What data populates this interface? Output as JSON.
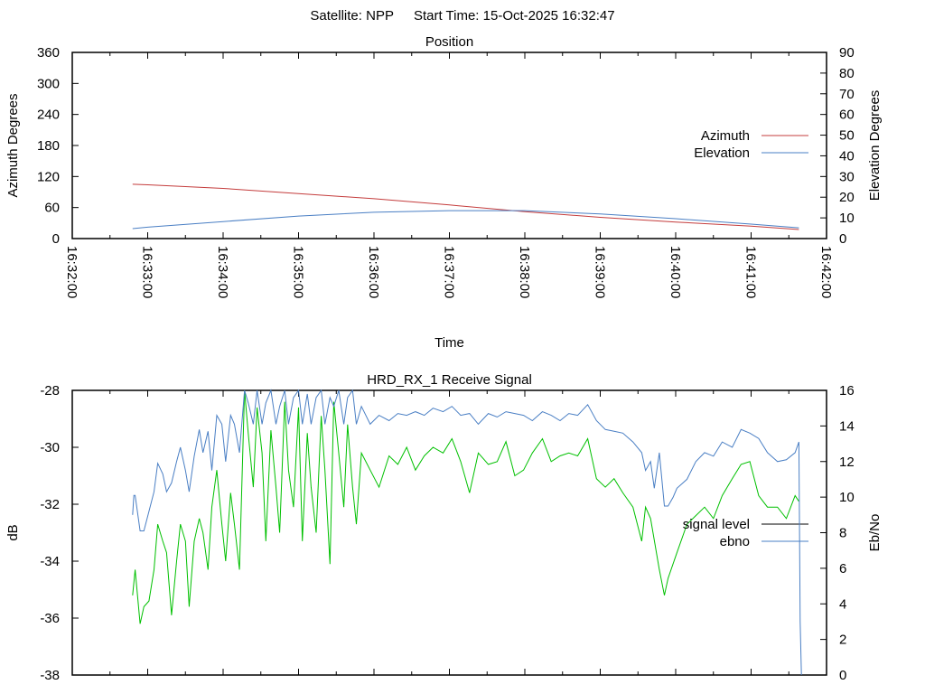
{
  "header": {
    "satellite_label": "Satellite: NPP",
    "start_time_label": "Start Time: 15-Oct-2025 16:32:47"
  },
  "chart_data": [
    {
      "type": "line",
      "title": "Position",
      "xlabel": "Time",
      "ylabel": "Azimuth Degrees",
      "y2label": "Elevation Degrees",
      "x_unit_note": "seconds",
      "xlim": [
        0,
        600
      ],
      "x_ticks": [
        0,
        60,
        120,
        180,
        240,
        300,
        360,
        420,
        480,
        540,
        600
      ],
      "x_tick_labels": [
        "16:32:00",
        "16:33:00",
        "16:34:00",
        "16:35:00",
        "16:36:00",
        "16:37:00",
        "16:38:00",
        "16:39:00",
        "16:40:00",
        "16:41:00",
        "16:42:00"
      ],
      "ylim": [
        0,
        360
      ],
      "y_ticks": [
        0,
        60,
        120,
        180,
        240,
        300,
        360
      ],
      "y2lim": [
        0,
        90
      ],
      "y2_ticks": [
        0,
        10,
        20,
        30,
        40,
        50,
        60,
        70,
        80,
        90
      ],
      "grid": false,
      "legend_position": "right",
      "series": [
        {
          "name": "Azimuth",
          "axis": "y",
          "color": "#c43c3c",
          "points": [
            [
              48,
              105
            ],
            [
              60,
              104
            ],
            [
              120,
              97
            ],
            [
              180,
              87
            ],
            [
              240,
              77
            ],
            [
              300,
              65
            ],
            [
              360,
              52
            ],
            [
              420,
              41
            ],
            [
              480,
              32
            ],
            [
              540,
              24
            ],
            [
              578,
              17.5
            ]
          ]
        },
        {
          "name": "Elevation",
          "axis": "y2",
          "color": "#4a7fc4",
          "points": [
            [
              48,
              4.8
            ],
            [
              60,
              5.5
            ],
            [
              120,
              8.2
            ],
            [
              180,
              10.9
            ],
            [
              240,
              12.7
            ],
            [
              300,
              13.5
            ],
            [
              360,
              13.5
            ],
            [
              420,
              11.9
            ],
            [
              480,
              9.6
            ],
            [
              540,
              7.0
            ],
            [
              578,
              5.2
            ]
          ]
        }
      ]
    },
    {
      "type": "line",
      "title": "HRD_RX_1 Receive Signal",
      "xlabel": "",
      "ylabel": "dB",
      "y2label": "Eb/No",
      "xlim": [
        0,
        600
      ],
      "x_ticks": [
        0,
        60,
        120,
        180,
        240,
        300,
        360,
        420,
        480,
        540,
        600
      ],
      "ylim": [
        -38,
        -28
      ],
      "y_ticks": [
        -38,
        -36,
        -34,
        -32,
        -30,
        -28
      ],
      "y2lim": [
        0,
        16
      ],
      "y2_ticks": [
        0,
        2,
        4,
        6,
        8,
        10,
        12,
        14,
        16
      ],
      "grid": false,
      "legend_position": "right",
      "series": [
        {
          "name": "signal level",
          "axis": "y",
          "color": "#00c000",
          "legend_color": "#000000",
          "points": [
            [
              48,
              -35.2
            ],
            [
              50,
              -34.3
            ],
            [
              54,
              -36.2
            ],
            [
              57,
              -35.6
            ],
            [
              61,
              -35.4
            ],
            [
              65,
              -34.3
            ],
            [
              68,
              -32.7
            ],
            [
              72,
              -33.3
            ],
            [
              75,
              -33.7
            ],
            [
              79,
              -35.9
            ],
            [
              83,
              -34.0
            ],
            [
              86,
              -32.7
            ],
            [
              90,
              -33.3
            ],
            [
              93,
              -35.6
            ],
            [
              97,
              -33.3
            ],
            [
              101,
              -32.5
            ],
            [
              104,
              -33.0
            ],
            [
              108,
              -34.3
            ],
            [
              111,
              -32.1
            ],
            [
              115,
              -30.8
            ],
            [
              119,
              -32.7
            ],
            [
              122,
              -34.0
            ],
            [
              126,
              -31.6
            ],
            [
              129,
              -32.7
            ],
            [
              133,
              -34.3
            ],
            [
              137,
              -28.0
            ],
            [
              140,
              -29.5
            ],
            [
              144,
              -31.4
            ],
            [
              147,
              -28.6
            ],
            [
              151,
              -30.2
            ],
            [
              154,
              -33.3
            ],
            [
              158,
              -29.4
            ],
            [
              162,
              -31.4
            ],
            [
              165,
              -33.0
            ],
            [
              169,
              -28.4
            ],
            [
              172,
              -30.8
            ],
            [
              176,
              -32.1
            ],
            [
              180,
              -28.6
            ],
            [
              183,
              -33.3
            ],
            [
              187,
              -29.5
            ],
            [
              190,
              -31.4
            ],
            [
              194,
              -33.0
            ],
            [
              198,
              -28.9
            ],
            [
              201,
              -30.8
            ],
            [
              205,
              -34.1
            ],
            [
              208,
              -28.4
            ],
            [
              212,
              -30.2
            ],
            [
              216,
              -32.1
            ],
            [
              219,
              -29.2
            ],
            [
              223,
              -31.4
            ],
            [
              226,
              -32.7
            ],
            [
              230,
              -30.2
            ],
            [
              237,
              -30.8
            ],
            [
              244,
              -31.4
            ],
            [
              252,
              -30.3
            ],
            [
              259,
              -30.6
            ],
            [
              266,
              -30.0
            ],
            [
              273,
              -30.8
            ],
            [
              280,
              -30.3
            ],
            [
              287,
              -30.0
            ],
            [
              295,
              -30.2
            ],
            [
              302,
              -29.7
            ],
            [
              309,
              -30.5
            ],
            [
              316,
              -31.6
            ],
            [
              323,
              -30.2
            ],
            [
              331,
              -30.6
            ],
            [
              338,
              -30.5
            ],
            [
              345,
              -29.8
            ],
            [
              352,
              -31.0
            ],
            [
              359,
              -30.8
            ],
            [
              366,
              -30.2
            ],
            [
              374,
              -29.7
            ],
            [
              381,
              -30.5
            ],
            [
              388,
              -30.3
            ],
            [
              395,
              -30.2
            ],
            [
              402,
              -30.3
            ],
            [
              410,
              -29.7
            ],
            [
              417,
              -31.1
            ],
            [
              424,
              -31.4
            ],
            [
              431,
              -31.1
            ],
            [
              438,
              -31.6
            ],
            [
              446,
              -32.1
            ],
            [
              453,
              -33.3
            ],
            [
              456,
              -32.1
            ],
            [
              460,
              -32.5
            ],
            [
              467,
              -34.3
            ],
            [
              471,
              -35.2
            ],
            [
              474,
              -34.6
            ],
            [
              481,
              -33.7
            ],
            [
              489,
              -32.7
            ],
            [
              496,
              -32.4
            ],
            [
              503,
              -32.1
            ],
            [
              510,
              -32.5
            ],
            [
              517,
              -31.7
            ],
            [
              525,
              -31.1
            ],
            [
              532,
              -30.6
            ],
            [
              539,
              -30.5
            ],
            [
              546,
              -31.7
            ],
            [
              553,
              -32.1
            ],
            [
              561,
              -32.1
            ],
            [
              568,
              -32.5
            ],
            [
              575,
              -31.7
            ],
            [
              578,
              -31.9
            ]
          ]
        },
        {
          "name": "ebno",
          "axis": "y2",
          "color": "#4a7fc4",
          "legend_color": "#4a7fc4",
          "points": [
            [
              48,
              9.0
            ],
            [
              49,
              10.1
            ],
            [
              50,
              10.1
            ],
            [
              54,
              8.1
            ],
            [
              57,
              8.1
            ],
            [
              61,
              9.2
            ],
            [
              65,
              10.3
            ],
            [
              68,
              11.9
            ],
            [
              72,
              11.3
            ],
            [
              75,
              10.3
            ],
            [
              79,
              10.8
            ],
            [
              83,
              12.0
            ],
            [
              86,
              12.8
            ],
            [
              90,
              11.5
            ],
            [
              93,
              10.3
            ],
            [
              97,
              12.3
            ],
            [
              101,
              13.8
            ],
            [
              104,
              12.5
            ],
            [
              108,
              13.7
            ],
            [
              111,
              11.5
            ],
            [
              115,
              14.6
            ],
            [
              119,
              14.1
            ],
            [
              122,
              12.0
            ],
            [
              126,
              14.6
            ],
            [
              129,
              14.1
            ],
            [
              133,
              12.5
            ],
            [
              137,
              16
            ],
            [
              140,
              15.3
            ],
            [
              144,
              14.1
            ],
            [
              147,
              16
            ],
            [
              151,
              14.1
            ],
            [
              154,
              15.3
            ],
            [
              158,
              16
            ],
            [
              162,
              14.1
            ],
            [
              165,
              15.1
            ],
            [
              169,
              16
            ],
            [
              172,
              14.1
            ],
            [
              176,
              15.6
            ],
            [
              180,
              16
            ],
            [
              183,
              14.1
            ],
            [
              187,
              15.8
            ],
            [
              190,
              14.1
            ],
            [
              194,
              15.6
            ],
            [
              198,
              16
            ],
            [
              201,
              14.1
            ],
            [
              205,
              15.6
            ],
            [
              208,
              15.1
            ],
            [
              212,
              16
            ],
            [
              216,
              14.1
            ],
            [
              219,
              15.6
            ],
            [
              223,
              16
            ],
            [
              226,
              14.1
            ],
            [
              230,
              15.1
            ],
            [
              237,
              14.1
            ],
            [
              244,
              14.6
            ],
            [
              252,
              14.3
            ],
            [
              259,
              14.7
            ],
            [
              266,
              14.6
            ],
            [
              273,
              14.8
            ],
            [
              280,
              14.6
            ],
            [
              287,
              15.0
            ],
            [
              295,
              14.8
            ],
            [
              302,
              15.1
            ],
            [
              309,
              14.6
            ],
            [
              316,
              14.7
            ],
            [
              323,
              14.1
            ],
            [
              331,
              14.7
            ],
            [
              338,
              14.5
            ],
            [
              345,
              14.8
            ],
            [
              352,
              14.7
            ],
            [
              359,
              14.6
            ],
            [
              366,
              14.3
            ],
            [
              374,
              14.8
            ],
            [
              381,
              14.6
            ],
            [
              388,
              14.3
            ],
            [
              395,
              14.7
            ],
            [
              402,
              14.6
            ],
            [
              410,
              15.2
            ],
            [
              417,
              14.3
            ],
            [
              424,
              13.8
            ],
            [
              431,
              13.7
            ],
            [
              438,
              13.6
            ],
            [
              446,
              13.1
            ],
            [
              453,
              12.5
            ],
            [
              456,
              11.5
            ],
            [
              460,
              12.0
            ],
            [
              463,
              10.5
            ],
            [
              467,
              12.5
            ],
            [
              471,
              9.5
            ],
            [
              474,
              9.5
            ],
            [
              478,
              10.0
            ],
            [
              481,
              10.5
            ],
            [
              489,
              11.0
            ],
            [
              496,
              12.0
            ],
            [
              503,
              12.5
            ],
            [
              510,
              12.3
            ],
            [
              517,
              13.1
            ],
            [
              525,
              12.8
            ],
            [
              532,
              13.8
            ],
            [
              539,
              13.6
            ],
            [
              546,
              13.3
            ],
            [
              553,
              12.5
            ],
            [
              561,
              12.0
            ],
            [
              568,
              12.1
            ],
            [
              575,
              12.5
            ],
            [
              578,
              13.1
            ],
            [
              579,
              3.0
            ],
            [
              580,
              0
            ]
          ]
        }
      ]
    }
  ]
}
